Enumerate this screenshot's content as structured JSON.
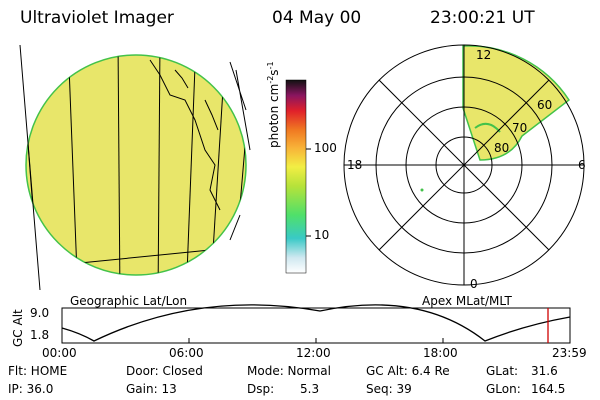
{
  "header": {
    "instrument": "Ultraviolet Imager",
    "date": "04 May 00",
    "time": "23:00:21 UT"
  },
  "colorbar": {
    "unit_label": "photon cm-2s-1",
    "unit_base": "photon cm",
    "unit_exp": "-2",
    "unit_s": "s",
    "unit_s_exp": "-1",
    "ticks": [
      "100",
      "10"
    ]
  },
  "panels": {
    "left_label": "Geographic Lat/Lon",
    "right_label": "Apex MLat/MLT"
  },
  "polar_plot": {
    "mlt_labels": {
      "top": "12",
      "left": "18",
      "right": "6",
      "bottom": "0"
    },
    "lat_labels": [
      "60",
      "70",
      "80"
    ]
  },
  "altitude_plot": {
    "ylabel": "GC Alt",
    "yticks": [
      "9.0",
      "1.8"
    ],
    "xticks": [
      "00:00",
      "06:00",
      "12:00",
      "18:00",
      "23:59"
    ]
  },
  "footer": {
    "flt": "Flt: HOME",
    "ip": "IP: 36.0",
    "door": "Door: Closed",
    "gain": "Gain: 13",
    "mode": "Mode: Normal",
    "dsp_label": "Dsp:",
    "dsp_value": "5.3",
    "gcalt": "GC Alt: 6.4 Re",
    "seq": "Seq: 39",
    "glat_label": "GLat:",
    "glat_value": "31.6",
    "glon_label": "GLon:",
    "glon_value": "164.5"
  },
  "colors": {
    "earth_fill": "#e8e66a",
    "earth_edge": "#43c24a",
    "marker": "#d00000"
  }
}
